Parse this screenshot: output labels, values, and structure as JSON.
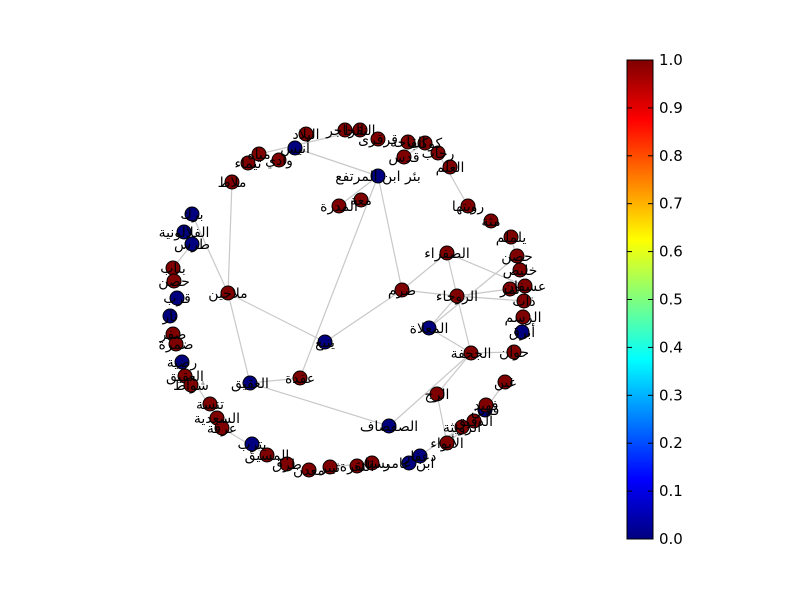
{
  "figure": {
    "colormap": "jet",
    "colormap_stops": [
      "#00007f",
      "#0000ff",
      "#007fff",
      "#00ffff",
      "#7fff7f",
      "#ffff00",
      "#ff7f00",
      "#ff0000",
      "#7f0000"
    ],
    "low_color": "#00007f",
    "high_color": "#7f0000",
    "edge_color": "#c8c8c8"
  },
  "colorbar": {
    "min": 0.0,
    "max": 1.0,
    "ticks": [
      {
        "value": 0.0,
        "label": "0.0"
      },
      {
        "value": 0.1,
        "label": "0.1"
      },
      {
        "value": 0.2,
        "label": "0.2"
      },
      {
        "value": 0.3,
        "label": "0.3"
      },
      {
        "value": 0.4,
        "label": "0.4"
      },
      {
        "value": 0.5,
        "label": "0.5"
      },
      {
        "value": 0.6,
        "label": "0.6"
      },
      {
        "value": 0.7,
        "label": "0.7"
      },
      {
        "value": 0.8,
        "label": "0.8"
      },
      {
        "value": 0.9,
        "label": "0.9"
      },
      {
        "value": 1.0,
        "label": "1.0"
      }
    ]
  },
  "nodes": [
    {
      "id": "n1",
      "label": "ضرم",
      "value": 1
    },
    {
      "id": "n2",
      "label": "ينبع",
      "value": 0
    },
    {
      "id": "n3",
      "label": "الصفراء",
      "value": 1
    },
    {
      "id": "n4",
      "label": "الروحاء",
      "value": 1
    },
    {
      "id": "n5",
      "label": "المعلاة",
      "value": 0
    },
    {
      "id": "n6",
      "label": "الصفصاف",
      "value": 0
    },
    {
      "id": "n7",
      "label": "الجحفة",
      "value": 1
    },
    {
      "id": "n8",
      "label": "الرج",
      "value": 1
    },
    {
      "id": "n9",
      "label": "ملاحين",
      "value": 1
    },
    {
      "id": "n10",
      "label": "العقيق",
      "value": 0
    },
    {
      "id": "n11",
      "label": "عقدة",
      "value": 1
    },
    {
      "id": "n12",
      "label": "بئر ابن المرتفع",
      "value": 0
    },
    {
      "id": "n13",
      "label": "المدرة",
      "value": 1
    },
    {
      "id": "n14",
      "label": "معة",
      "value": 1
    },
    {
      "id": "n15",
      "label": "الحاجر",
      "value": 1
    },
    {
      "id": "n16",
      "label": "النقرا",
      "value": 1
    },
    {
      "id": "n17",
      "label": "قرقرى",
      "value": 1
    },
    {
      "id": "n18",
      "label": "مياه",
      "value": 1
    },
    {
      "id": "n19",
      "label": "وادي",
      "value": 1
    },
    {
      "id": "n20",
      "label": "أنيس",
      "value": 0
    },
    {
      "id": "n21",
      "label": "ملاط",
      "value": 1
    },
    {
      "id": "n22",
      "label": "برك",
      "value": 0
    },
    {
      "id": "n23",
      "label": "الفلالونية",
      "value": 0
    },
    {
      "id": "n24",
      "label": "طرس",
      "value": 0
    },
    {
      "id": "n25",
      "label": "بناب",
      "value": 1
    },
    {
      "id": "n26",
      "label": "حصن",
      "value": 1
    },
    {
      "id": "n27",
      "label": "قرب",
      "value": 0
    },
    {
      "id": "n28",
      "label": "نار",
      "value": 0
    },
    {
      "id": "n29",
      "label": "صفر",
      "value": 1
    },
    {
      "id": "n30",
      "label": "ضمرة",
      "value": 1
    },
    {
      "id": "n31",
      "label": "رضية",
      "value": 0
    },
    {
      "id": "n32",
      "label": "العقيق",
      "value": 1
    },
    {
      "id": "n33",
      "label": "شواط",
      "value": 1
    },
    {
      "id": "n34",
      "label": "تنسة",
      "value": 1
    },
    {
      "id": "n35",
      "label": "السعدية",
      "value": 1
    },
    {
      "id": "n36",
      "label": "عرفة",
      "value": 1
    },
    {
      "id": "n37",
      "label": "يترب",
      "value": 0
    },
    {
      "id": "n38",
      "label": "المسيق",
      "value": 1
    },
    {
      "id": "n39",
      "label": "طرق",
      "value": 1
    },
    {
      "id": "n40",
      "label": "معدن",
      "value": 1
    },
    {
      "id": "n41",
      "label": "ثبير",
      "value": 1
    },
    {
      "id": "n42",
      "label": "النقرة",
      "value": 1
    },
    {
      "id": "n43",
      "label": "بستان",
      "value": 1
    },
    {
      "id": "n44",
      "label": "ابن عامر",
      "value": 0
    },
    {
      "id": "n45",
      "label": "دعفار",
      "value": 0
    },
    {
      "id": "n46",
      "label": "الأبواء",
      "value": 1
    },
    {
      "id": "n47",
      "label": "الرويثة",
      "value": 1
    },
    {
      "id": "n48",
      "label": "الدقيق",
      "value": 1
    },
    {
      "id": "n49",
      "label": "قدين",
      "value": 0
    },
    {
      "id": "n50",
      "label": "فهيد",
      "value": 1
    },
    {
      "id": "n51",
      "label": "غبن",
      "value": 1
    },
    {
      "id": "n52",
      "label": "حوان",
      "value": 1
    },
    {
      "id": "n53",
      "label": "أبرق",
      "value": 0
    },
    {
      "id": "n54",
      "label": "الرسم",
      "value": 1
    },
    {
      "id": "n55",
      "label": "ذات",
      "value": 1
    },
    {
      "id": "n56",
      "label": "عسفان",
      "value": 1
    },
    {
      "id": "n57",
      "label": "تمر",
      "value": 1
    },
    {
      "id": "n58",
      "label": "خليص",
      "value": 1
    },
    {
      "id": "n59",
      "label": "حصن",
      "value": 1
    },
    {
      "id": "n60",
      "label": "يلملم",
      "value": 1
    },
    {
      "id": "n61",
      "label": "مثة",
      "value": 1
    },
    {
      "id": "n62",
      "label": "رويتها",
      "value": 1
    },
    {
      "id": "n63",
      "label": "العلم",
      "value": 1
    },
    {
      "id": "n64",
      "label": "رحاب",
      "value": 1
    },
    {
      "id": "n65",
      "label": "قدس",
      "value": 1
    },
    {
      "id": "n66",
      "label": "كوكب",
      "value": 1
    },
    {
      "id": "n67",
      "label": "القاحة",
      "value": 1
    },
    {
      "id": "n68",
      "label": "البلاد",
      "value": 1
    },
    {
      "id": "n69",
      "label": "تيماء",
      "value": 1
    }
  ],
  "edges": [
    [
      "n1",
      "n2"
    ],
    [
      "n1",
      "n3"
    ],
    [
      "n1",
      "n12"
    ],
    [
      "n1",
      "n4"
    ],
    [
      "n2",
      "n9"
    ],
    [
      "n3",
      "n4"
    ],
    [
      "n4",
      "n5"
    ],
    [
      "n4",
      "n7"
    ],
    [
      "n5",
      "n7"
    ],
    [
      "n7",
      "n8"
    ],
    [
      "n7",
      "n6"
    ],
    [
      "n6",
      "n10"
    ],
    [
      "n10",
      "n11"
    ],
    [
      "n11",
      "n12"
    ],
    [
      "n10",
      "n9"
    ],
    [
      "n4",
      "n55"
    ],
    [
      "n4",
      "n57"
    ],
    [
      "n5",
      "n59"
    ],
    [
      "n7",
      "n52"
    ],
    [
      "n8",
      "n46"
    ],
    [
      "n12",
      "n13"
    ],
    [
      "n12",
      "n20"
    ],
    [
      "n9",
      "n22"
    ],
    [
      "n9",
      "n21"
    ],
    [
      "n25",
      "n24"
    ],
    [
      "n35",
      "n31"
    ],
    [
      "n33",
      "n31"
    ],
    [
      "n36",
      "n38"
    ],
    [
      "n41",
      "n43"
    ],
    [
      "n44",
      "n47"
    ],
    [
      "n48",
      "n46"
    ],
    [
      "n49",
      "n51"
    ],
    [
      "n54",
      "n56"
    ],
    [
      "n58",
      "n60"
    ],
    [
      "n62",
      "n64"
    ],
    [
      "n16",
      "n18"
    ],
    [
      "n65",
      "n66"
    ],
    [
      "n3",
      "n56"
    ]
  ]
}
